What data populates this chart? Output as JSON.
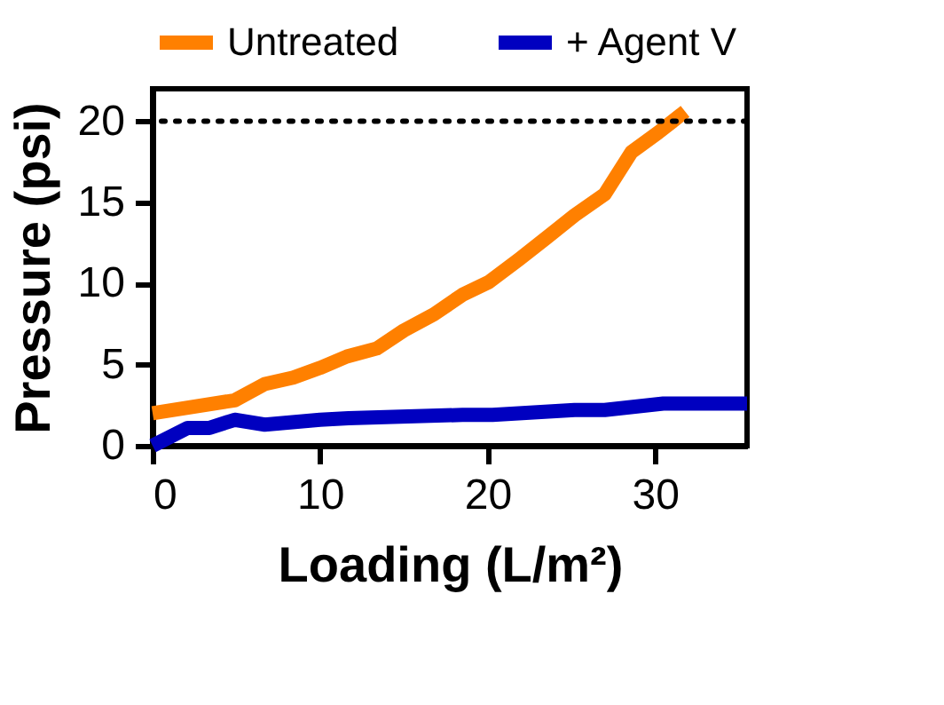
{
  "chart_data": {
    "type": "line",
    "xlabel": "Loading (L/m²)",
    "ylabel": "Pressure (psi)",
    "xlim": [
      0,
      35.5
    ],
    "xticks": [
      0,
      10,
      20,
      30
    ],
    "ylim": [
      0,
      22
    ],
    "yticks": [
      0,
      5,
      10,
      15,
      20
    ],
    "grid": false,
    "legend": "top",
    "marker": "none",
    "line_style": "solid",
    "ref_lines": [
      {
        "axis": "y",
        "value": 20,
        "line_style": "dotted",
        "color": "#000000"
      }
    ],
    "series": [
      {
        "name": "Untreated",
        "color": "#ff8000",
        "x": [
          0,
          4.9,
          6.7,
          8.4,
          10.0,
          11.6,
          13.4,
          15.0,
          16.8,
          18.5,
          20.1,
          21.9,
          23.5,
          25.2,
          27.0,
          28.6,
          30.2,
          31.8
        ],
        "values": [
          2.0,
          2.8,
          3.8,
          4.2,
          4.8,
          5.5,
          6.0,
          7.1,
          8.1,
          9.3,
          10.1,
          11.5,
          12.8,
          14.2,
          15.5,
          18.1,
          19.3,
          20.6
        ]
      },
      {
        "name": "+ Agent V",
        "color": "#0000c0",
        "x": [
          0,
          2.1,
          3.4,
          4.9,
          6.7,
          10.0,
          11.7,
          18.5,
          20.3,
          25.2,
          27.0,
          30.5,
          32.3,
          35.5
        ],
        "values": [
          0,
          1.1,
          1.1,
          1.6,
          1.3,
          1.6,
          1.7,
          1.9,
          1.9,
          2.2,
          2.2,
          2.6,
          2.6,
          2.6
        ]
      }
    ]
  }
}
